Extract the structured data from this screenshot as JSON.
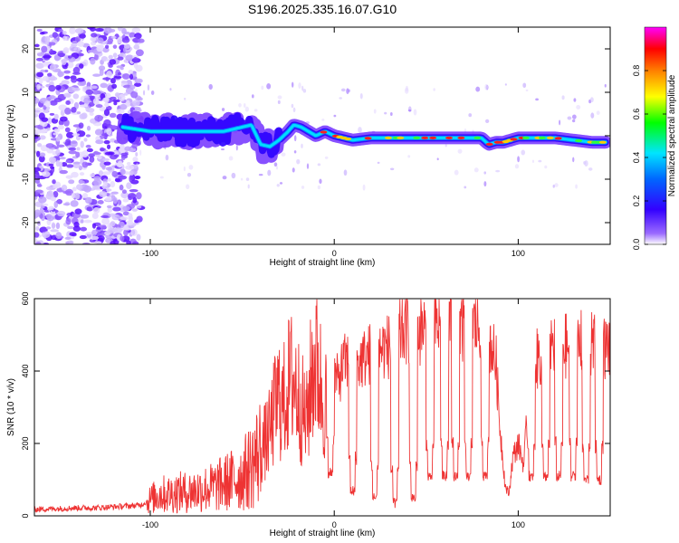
{
  "page_title": "S196.2025.335.16.07.G10",
  "chart_data": [
    {
      "type": "heatmap",
      "title": "S196.2025.335.16.07.G10",
      "xlabel": "Height of straight line (km)",
      "ylabel": "Frequency (Hz)",
      "xlim": [
        -163,
        150
      ],
      "ylim": [
        -25,
        25
      ],
      "x_ticks": [
        -100,
        0,
        100
      ],
      "x_tick_labels": [
        "-100",
        "0",
        "100"
      ],
      "y_ticks": [
        -20,
        -10,
        0,
        10,
        20
      ],
      "y_tick_labels": [
        "-20",
        "-10",
        "0",
        "10",
        "20"
      ],
      "colorbar": {
        "label": "Normalized spectral amplitude",
        "range": [
          0,
          1
        ],
        "ticks": [
          0.0,
          0.2,
          0.4,
          0.6,
          0.8
        ],
        "tick_labels": [
          "0.0",
          "0.2",
          "0.4",
          "0.6",
          "0.8"
        ],
        "colors": [
          "#ffffff",
          "#8000ff",
          "#0000ff",
          "#00ffff",
          "#00ff00",
          "#ffff00",
          "#ff8000",
          "#ff0000",
          "#ff00ff"
        ]
      },
      "ridge_line": {
        "x": [
          -115,
          -100,
          -80,
          -60,
          -50,
          -45,
          -40,
          -35,
          -30,
          -25,
          -22,
          -18,
          -14,
          -10,
          -5,
          0,
          10,
          20,
          30,
          40,
          50,
          60,
          70,
          80,
          84,
          88,
          92,
          96,
          100,
          110,
          120,
          130,
          140,
          148
        ],
        "y": [
          2,
          1,
          1,
          1,
          2,
          2.5,
          -2,
          -2.5,
          -1,
          1,
          2.5,
          2,
          1,
          0,
          1,
          0,
          -1,
          -0.5,
          -0.5,
          -0.5,
          -0.5,
          -0.5,
          -0.5,
          -0.5,
          -2,
          -1.5,
          -1.5,
          -1,
          -0.5,
          -0.5,
          -0.5,
          -1,
          -1.5,
          -1.5
        ]
      },
      "noise_region_x": [
        -163,
        -105
      ]
    },
    {
      "type": "line",
      "title": "",
      "xlabel": "Height of straight line (km)",
      "ylabel": "SNR (10 * v/v)",
      "xlim": [
        -163,
        150
      ],
      "ylim": [
        0,
        600
      ],
      "x_ticks": [
        -100,
        0,
        100
      ],
      "x_tick_labels": [
        "-100",
        "0",
        "100"
      ],
      "y_ticks": [
        0,
        200,
        400,
        600
      ],
      "y_tick_labels": [
        "0",
        "200",
        "400",
        "600"
      ],
      "series": [
        {
          "name": "SNR",
          "color": "#ee3333",
          "x": [
            -163,
            -150,
            -140,
            -130,
            -120,
            -110,
            -105,
            -100,
            -95,
            -90,
            -85,
            -80,
            -75,
            -70,
            -65,
            -60,
            -55,
            -50,
            -45,
            -40,
            -35,
            -32,
            -30,
            -28,
            -25,
            -22,
            -20,
            -18,
            -15,
            -12,
            -10,
            -8,
            -5,
            -3,
            0,
            2,
            5,
            8,
            10,
            15,
            20,
            25,
            30,
            35,
            40,
            45,
            50,
            55,
            60,
            65,
            70,
            75,
            80,
            85,
            88,
            90,
            93,
            95,
            97,
            100,
            103,
            105,
            110,
            115,
            120,
            125,
            130,
            135,
            140,
            145,
            150
          ],
          "y": [
            18,
            20,
            22,
            22,
            25,
            28,
            30,
            45,
            60,
            60,
            65,
            65,
            70,
            75,
            80,
            90,
            100,
            110,
            140,
            180,
            230,
            300,
            330,
            300,
            360,
            380,
            340,
            300,
            260,
            400,
            430,
            380,
            300,
            350,
            390,
            370,
            420,
            430,
            400,
            430,
            450,
            460,
            470,
            500,
            520,
            510,
            520,
            530,
            510,
            520,
            520,
            530,
            520,
            480,
            420,
            250,
            80,
            60,
            160,
            200,
            140,
            280,
            430,
            460,
            480,
            470,
            460,
            480,
            470,
            460,
            470
          ]
        }
      ],
      "dropouts": [
        {
          "x": -2,
          "y": 120
        },
        {
          "x": 10,
          "y": 70
        },
        {
          "x": 22,
          "y": 50
        },
        {
          "x": 33,
          "y": 35
        },
        {
          "x": 43,
          "y": 50
        },
        {
          "x": 52,
          "y": 110
        },
        {
          "x": 60,
          "y": 110
        },
        {
          "x": 66,
          "y": 110
        },
        {
          "x": 73,
          "y": 110
        },
        {
          "x": 82,
          "y": 110
        },
        {
          "x": 107,
          "y": 110
        },
        {
          "x": 115,
          "y": 110
        },
        {
          "x": 122,
          "y": 110
        },
        {
          "x": 130,
          "y": 110
        },
        {
          "x": 137,
          "y": 100
        },
        {
          "x": 144,
          "y": 100
        }
      ]
    }
  ]
}
